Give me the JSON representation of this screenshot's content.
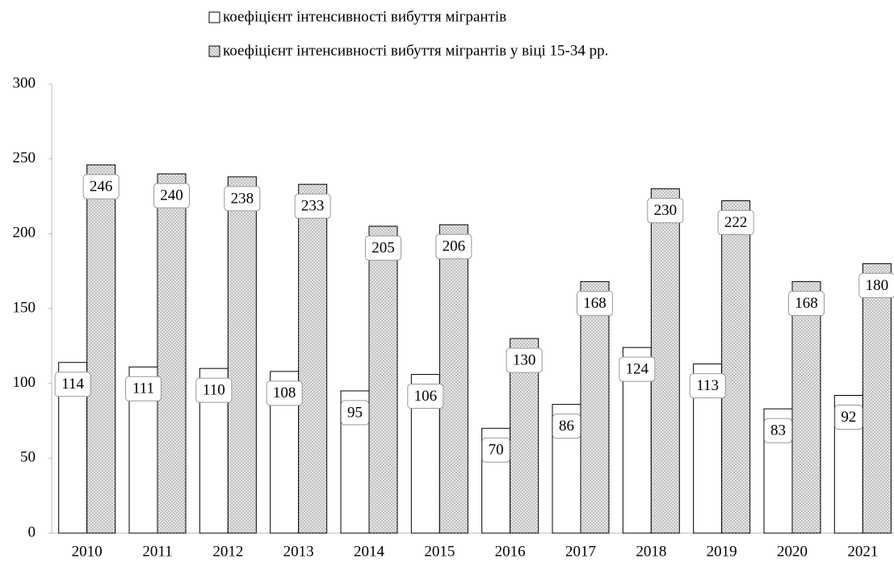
{
  "chart_data": {
    "type": "bar",
    "categories": [
      "2010",
      "2011",
      "2012",
      "2013",
      "2014",
      "2015",
      "2016",
      "2017",
      "2018",
      "2019",
      "2020",
      "2021"
    ],
    "series": [
      {
        "name": "коефіцієнт інтенсивності вибуття мігрантів",
        "color": "#ffffff",
        "values": [
          114,
          111,
          110,
          108,
          95,
          106,
          70,
          86,
          124,
          113,
          83,
          92
        ]
      },
      {
        "name": "коефіцієнт інтенсивності вибуття мігрантів у віці 15-34 рр.",
        "color": "#e6e6e6",
        "values": [
          246,
          240,
          238,
          233,
          205,
          206,
          130,
          168,
          230,
          222,
          168,
          180
        ]
      }
    ],
    "ylim": [
      0,
      300
    ],
    "yticks": [
      0,
      50,
      100,
      150,
      200,
      250,
      300
    ],
    "grid": false,
    "legend": "top"
  }
}
